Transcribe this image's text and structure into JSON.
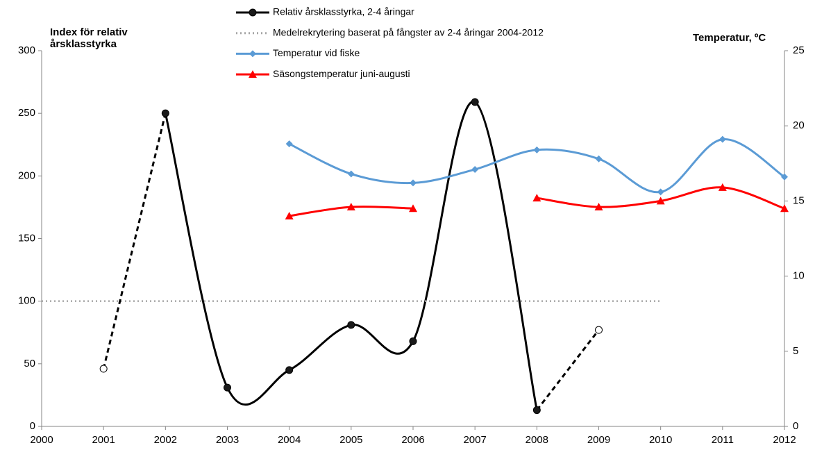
{
  "chart_data": {
    "type": "line",
    "y_label": "Index för relativ årsklasstyrka",
    "y2_label": "Temperatur, ºC",
    "xlim": [
      2000,
      2012
    ],
    "xticks": [
      2000,
      2001,
      2002,
      2003,
      2004,
      2005,
      2006,
      2007,
      2008,
      2009,
      2010,
      2011,
      2012
    ],
    "ylim": [
      0,
      300
    ],
    "yticks": [
      0,
      50,
      100,
      150,
      200,
      250,
      300
    ],
    "y2lim": [
      0,
      25
    ],
    "y2ticks": [
      0,
      5,
      10,
      15,
      20,
      25
    ],
    "grid": false,
    "series": [
      {
        "name": "Relativ årsklasstyrka, 2-4 åringar",
        "color": "#000000",
        "marker": "circle",
        "smooth": true,
        "x": [
          2001,
          2002,
          2003,
          2004,
          2005,
          2006,
          2007,
          2008,
          2009
        ],
        "values": [
          46,
          250,
          31,
          45,
          81,
          68,
          259,
          13,
          77
        ],
        "open_markers": [
          true,
          false,
          false,
          false,
          false,
          false,
          false,
          false,
          true
        ]
      },
      {
        "name": "Medelrekrytering baserat på fångster av 2-4 åringar 2004-2012",
        "color": "#a6a6a6",
        "style": "dotted",
        "x": [
          2000,
          2010
        ],
        "values": [
          100,
          100
        ]
      },
      {
        "name": "Temperatur vid fiske",
        "color": "#5b9bd5",
        "marker": "diamond",
        "smooth": true,
        "axis": "y2",
        "x": [
          2004,
          2005,
          2006,
          2007,
          2008,
          2009,
          2010,
          2011,
          2012
        ],
        "values": [
          18.8,
          16.8,
          16.2,
          17.1,
          18.4,
          17.8,
          15.6,
          19.1,
          16.6
        ]
      },
      {
        "name": "Säsongstemperatur juni-augusti",
        "color": "#ff0000",
        "marker": "triangle",
        "smooth": true,
        "axis": "y2",
        "x": [
          2004,
          2005,
          2006,
          2007,
          2008,
          2009,
          2010,
          2011,
          2012
        ],
        "values": [
          14.0,
          14.6,
          14.5,
          null,
          15.2,
          14.6,
          15.0,
          15.9,
          14.5
        ]
      }
    ]
  }
}
